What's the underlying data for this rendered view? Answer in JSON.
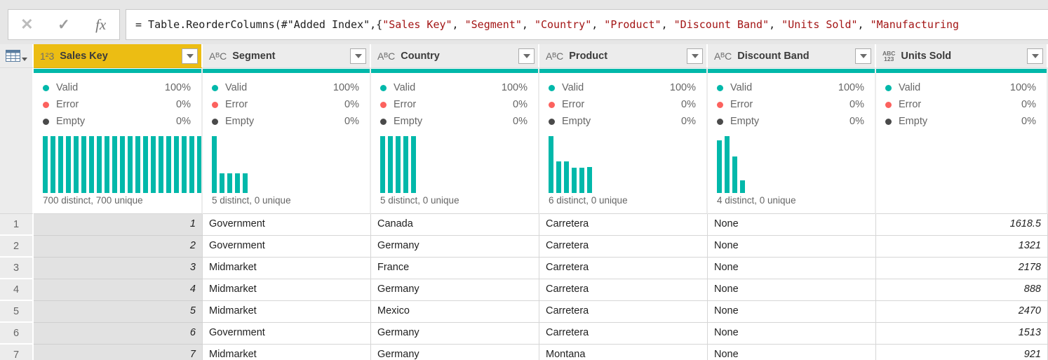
{
  "colors": {
    "accent_teal": "#01B8AA",
    "error_red": "#FC625E",
    "empty_gray": "#4A4A4A",
    "selected_header_yellow": "#ECBD13",
    "string_literal_red": "#A31515"
  },
  "formula_bar": {
    "cancel_icon": "✕",
    "commit_icon": "✓",
    "fx_icon": "fx",
    "segments": [
      {
        "t": "= Table.ReorderColumns(#\"Added Index\",{",
        "c": "code"
      },
      {
        "t": "\"Sales Key\"",
        "c": "string"
      },
      {
        "t": ", ",
        "c": "code"
      },
      {
        "t": "\"Segment\"",
        "c": "string"
      },
      {
        "t": ", ",
        "c": "code"
      },
      {
        "t": "\"Country\"",
        "c": "string"
      },
      {
        "t": ", ",
        "c": "code"
      },
      {
        "t": "\"Product\"",
        "c": "string"
      },
      {
        "t": ", ",
        "c": "code"
      },
      {
        "t": "\"Discount Band\"",
        "c": "string"
      },
      {
        "t": ", ",
        "c": "code"
      },
      {
        "t": "\"Units Sold\"",
        "c": "string"
      },
      {
        "t": ", ",
        "c": "code"
      },
      {
        "t": "\"Manufacturing",
        "c": "string"
      }
    ]
  },
  "quality_labels": {
    "valid": "Valid",
    "error": "Error",
    "empty": "Empty"
  },
  "columns": [
    {
      "name": "Sales Key",
      "type_icon": "1²3",
      "selected": true,
      "align": "right",
      "quality": {
        "valid": "100%",
        "error": "0%",
        "empty": "0%"
      },
      "distinct_label": "700 distinct, 700 unique",
      "bars": [
        100,
        100,
        100,
        100,
        100,
        100,
        100,
        100,
        100,
        100,
        100,
        100,
        100,
        100,
        100,
        100,
        100,
        100,
        100,
        100,
        100
      ]
    },
    {
      "name": "Segment",
      "type_icon": "AᴮC",
      "selected": false,
      "align": "left",
      "quality": {
        "valid": "100%",
        "error": "0%",
        "empty": "0%"
      },
      "distinct_label": "5 distinct, 0 unique",
      "bars": [
        100,
        34,
        34,
        34,
        34
      ]
    },
    {
      "name": "Country",
      "type_icon": "AᴮC",
      "selected": false,
      "align": "left",
      "quality": {
        "valid": "100%",
        "error": "0%",
        "empty": "0%"
      },
      "distinct_label": "5 distinct, 0 unique",
      "bars": [
        100,
        100,
        100,
        100,
        100
      ]
    },
    {
      "name": "Product",
      "type_icon": "AᴮC",
      "selected": false,
      "align": "left",
      "quality": {
        "valid": "100%",
        "error": "0%",
        "empty": "0%"
      },
      "distinct_label": "6 distinct, 0 unique",
      "bars": [
        100,
        55,
        56,
        45,
        45,
        46
      ]
    },
    {
      "name": "Discount Band",
      "type_icon": "AᴮC",
      "selected": false,
      "align": "left",
      "quality": {
        "valid": "100%",
        "error": "0%",
        "empty": "0%"
      },
      "distinct_label": "4 distinct, 0 unique",
      "bars": [
        93,
        100,
        64,
        22
      ]
    },
    {
      "name": "Units Sold",
      "type_icon_line1": "ABC",
      "type_icon_line2": "123",
      "selected": false,
      "align": "right",
      "quality": {
        "valid": "100%",
        "error": "0%",
        "empty": "0%"
      },
      "distinct_label": "",
      "bars": []
    }
  ],
  "rows": [
    {
      "n": "1",
      "cells": [
        "1",
        "Government",
        "Canada",
        "Carretera",
        "None",
        "1618.5"
      ]
    },
    {
      "n": "2",
      "cells": [
        "2",
        "Government",
        "Germany",
        "Carretera",
        "None",
        "1321"
      ]
    },
    {
      "n": "3",
      "cells": [
        "3",
        "Midmarket",
        "France",
        "Carretera",
        "None",
        "2178"
      ]
    },
    {
      "n": "4",
      "cells": [
        "4",
        "Midmarket",
        "Germany",
        "Carretera",
        "None",
        "888"
      ]
    },
    {
      "n": "5",
      "cells": [
        "5",
        "Midmarket",
        "Mexico",
        "Carretera",
        "None",
        "2470"
      ]
    },
    {
      "n": "6",
      "cells": [
        "6",
        "Government",
        "Germany",
        "Carretera",
        "None",
        "1513"
      ]
    },
    {
      "n": "7",
      "cells": [
        "7",
        "Midmarket",
        "Germany",
        "Montana",
        "None",
        "921"
      ]
    }
  ]
}
